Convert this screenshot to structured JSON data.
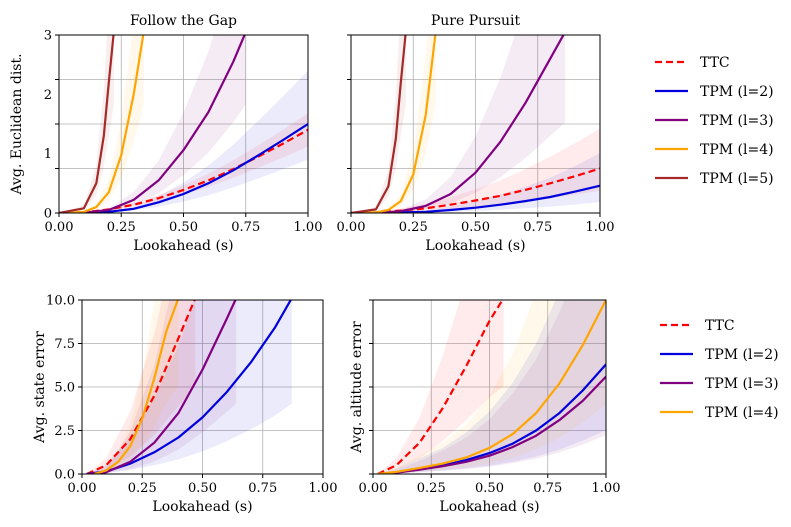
{
  "chart_data": [
    {
      "type": "line",
      "title": "Follow the Gap",
      "xlabel": "Lookahead (s)",
      "ylabel": "Avg. Euclidean dist.",
      "xlim": [
        0,
        1
      ],
      "ylim": [
        0,
        3
      ],
      "xticks": [
        "0.00",
        "0.25",
        "0.50",
        "0.75",
        "1.00"
      ],
      "yticks": [
        "0",
        "1",
        "2",
        "3"
      ],
      "grid": true,
      "series": [
        {
          "name": "TTC",
          "x": [
            0,
            0.1,
            0.2,
            0.3,
            0.4,
            0.5,
            0.6,
            0.7,
            0.8,
            0.9,
            1.0
          ],
          "y": [
            0,
            0.01,
            0.06,
            0.14,
            0.25,
            0.39,
            0.55,
            0.74,
            0.95,
            1.17,
            1.4
          ],
          "band": [
            0.8,
            1.2
          ]
        },
        {
          "name": "TPM (l=2)",
          "x": [
            0,
            0.1,
            0.2,
            0.3,
            0.4,
            0.5,
            0.6,
            0.7,
            0.8,
            0.9,
            1.0
          ],
          "y": [
            0,
            0,
            0.02,
            0.07,
            0.18,
            0.32,
            0.5,
            0.72,
            0.97,
            1.23,
            1.5
          ],
          "band": [
            0.6,
            1.6
          ]
        },
        {
          "name": "TPM (l=3)",
          "x": [
            0,
            0.1,
            0.2,
            0.3,
            0.4,
            0.5,
            0.6,
            0.7,
            0.75
          ],
          "y": [
            0,
            0.005,
            0.05,
            0.22,
            0.55,
            1.06,
            1.7,
            2.55,
            3.05
          ],
          "band": [
            0.6,
            1.6
          ]
        },
        {
          "name": "TPM (l=4)",
          "x": [
            0,
            0.1,
            0.15,
            0.2,
            0.25,
            0.3,
            0.34
          ],
          "y": [
            0,
            0.02,
            0.1,
            0.35,
            0.98,
            2.0,
            3.05
          ],
          "band": [
            0.6,
            1.6
          ]
        },
        {
          "name": "TPM (l=5)",
          "x": [
            0,
            0.1,
            0.15,
            0.18,
            0.2,
            0.22
          ],
          "y": [
            0,
            0.08,
            0.5,
            1.3,
            2.2,
            3.05
          ],
          "band": [
            0.6,
            1.6
          ]
        }
      ],
      "legend": "right"
    },
    {
      "type": "line",
      "title": "Pure Pursuit",
      "xlabel": "Lookahead (s)",
      "ylabel": "",
      "xlim": [
        0,
        1
      ],
      "ylim": [
        0,
        3
      ],
      "xticks": [
        "0.00",
        "0.25",
        "0.50",
        "0.75",
        "1.00"
      ],
      "yticks": [],
      "grid": true,
      "series": [
        {
          "name": "TTC",
          "x": [
            0,
            0.1,
            0.2,
            0.3,
            0.4,
            0.5,
            0.6,
            0.7,
            0.8,
            0.9,
            1.0
          ],
          "y": [
            0,
            0.01,
            0.04,
            0.08,
            0.14,
            0.21,
            0.29,
            0.39,
            0.5,
            0.62,
            0.75
          ],
          "band": [
            0.5,
            1.9
          ]
        },
        {
          "name": "TPM (l=2)",
          "x": [
            0,
            0.1,
            0.2,
            0.3,
            0.4,
            0.5,
            0.6,
            0.7,
            0.8,
            0.9,
            1.0
          ],
          "y": [
            0,
            0,
            0.01,
            0.02,
            0.05,
            0.09,
            0.14,
            0.2,
            0.27,
            0.36,
            0.46
          ],
          "band": [
            0.4,
            2.2
          ]
        },
        {
          "name": "TPM (l=3)",
          "x": [
            0,
            0.1,
            0.2,
            0.3,
            0.4,
            0.5,
            0.6,
            0.7,
            0.8,
            0.86
          ],
          "y": [
            0,
            0,
            0.03,
            0.12,
            0.32,
            0.68,
            1.2,
            1.85,
            2.6,
            3.05
          ],
          "band": [
            0.5,
            1.9
          ]
        },
        {
          "name": "TPM (l=4)",
          "x": [
            0,
            0.1,
            0.15,
            0.2,
            0.25,
            0.3,
            0.34
          ],
          "y": [
            0,
            0.01,
            0.05,
            0.2,
            0.65,
            1.65,
            3.05
          ],
          "band": [
            0.6,
            1.6
          ]
        },
        {
          "name": "TPM (l=5)",
          "x": [
            0,
            0.1,
            0.15,
            0.18,
            0.2,
            0.22
          ],
          "y": [
            0,
            0.06,
            0.45,
            1.25,
            2.2,
            3.05
          ],
          "band": [
            0.6,
            1.6
          ]
        }
      ],
      "legend": "right"
    },
    {
      "type": "line",
      "title": "",
      "xlabel": "Lookahead (s)",
      "ylabel": "Avg. state error",
      "xlim": [
        0,
        1
      ],
      "ylim": [
        0,
        10
      ],
      "xticks": [
        "0.00",
        "0.25",
        "0.50",
        "0.75",
        "1.00"
      ],
      "yticks": [
        "0.0",
        "2.5",
        "5.0",
        "7.5",
        "10.0"
      ],
      "grid": true,
      "series": [
        {
          "name": "TTC",
          "x": [
            0.02,
            0.1,
            0.2,
            0.3,
            0.4,
            0.47
          ],
          "y": [
            0,
            0.5,
            2.0,
            4.5,
            7.8,
            10.1
          ],
          "band": [
            0.5,
            1.8
          ]
        },
        {
          "name": "TPM (l=2)",
          "x": [
            0.02,
            0.1,
            0.2,
            0.3,
            0.4,
            0.5,
            0.6,
            0.7,
            0.8,
            0.87
          ],
          "y": [
            0,
            0.15,
            0.6,
            1.25,
            2.1,
            3.25,
            4.7,
            6.4,
            8.4,
            10.1
          ],
          "band": [
            0.4,
            3.5
          ]
        },
        {
          "name": "TPM (l=3)",
          "x": [
            0.02,
            0.1,
            0.2,
            0.3,
            0.4,
            0.5,
            0.6,
            0.64
          ],
          "y": [
            0,
            0.1,
            0.7,
            1.8,
            3.5,
            6.0,
            8.9,
            10.1
          ],
          "band": [
            0.4,
            3.5
          ]
        },
        {
          "name": "TPM (l=4)",
          "x": [
            0.05,
            0.1,
            0.15,
            0.2,
            0.25,
            0.3,
            0.35,
            0.4
          ],
          "y": [
            0,
            0.2,
            0.7,
            1.6,
            3.2,
            5.5,
            8.2,
            10.1
          ],
          "band": [
            0.5,
            1.8
          ]
        }
      ],
      "legend": "right"
    },
    {
      "type": "line",
      "title": "",
      "xlabel": "Lookahead (s)",
      "ylabel": "Avg. altitude error",
      "xlim": [
        0,
        1
      ],
      "ylim": [
        0,
        10
      ],
      "xticks": [
        "0.00",
        "0.25",
        "0.50",
        "0.75",
        "1.00"
      ],
      "yticks": [],
      "grid": true,
      "series": [
        {
          "name": "TTC",
          "x": [
            0.02,
            0.1,
            0.2,
            0.3,
            0.4,
            0.5,
            0.56
          ],
          "y": [
            0,
            0.5,
            1.8,
            3.8,
            6.2,
            8.8,
            10.1
          ],
          "band": [
            0.5,
            1.8
          ]
        },
        {
          "name": "TPM (l=2)",
          "x": [
            0.02,
            0.1,
            0.2,
            0.3,
            0.4,
            0.5,
            0.6,
            0.7,
            0.8,
            0.9,
            1.0
          ],
          "y": [
            0,
            0.1,
            0.3,
            0.5,
            0.8,
            1.2,
            1.75,
            2.5,
            3.5,
            4.8,
            6.3
          ],
          "band": [
            0.4,
            3.0
          ]
        },
        {
          "name": "TPM (l=3)",
          "x": [
            0.02,
            0.1,
            0.2,
            0.3,
            0.4,
            0.5,
            0.6,
            0.7,
            0.8,
            0.9,
            1.0
          ],
          "y": [
            0,
            0.08,
            0.25,
            0.45,
            0.7,
            1.05,
            1.55,
            2.2,
            3.1,
            4.2,
            5.6
          ],
          "band": [
            0.4,
            3.0
          ]
        },
        {
          "name": "TPM (l=4)",
          "x": [
            0.02,
            0.1,
            0.2,
            0.3,
            0.4,
            0.5,
            0.6,
            0.7,
            0.8,
            0.9,
            1.0
          ],
          "y": [
            0,
            0.12,
            0.35,
            0.6,
            0.95,
            1.5,
            2.3,
            3.5,
            5.2,
            7.4,
            10.0
          ],
          "band": [
            0.4,
            3.0
          ]
        }
      ],
      "legend": "right"
    }
  ],
  "legends": [
    {
      "entries": [
        "TTC",
        "TPM (l=2)",
        "TPM (l=3)",
        "TPM (l=4)",
        "TPM (l=5)"
      ]
    },
    {
      "entries": [
        "TTC",
        "TPM (l=2)",
        "TPM (l=3)",
        "TPM (l=4)"
      ]
    }
  ],
  "colors": {
    "TTC": "#ff0000",
    "TPM (l=2)": "#0000dd",
    "TPM (l=3)": "#800080",
    "TPM (l=4)": "#ffa500",
    "TPM (l=5)": "#a52a2a",
    "grid": "#b0b0b0"
  }
}
